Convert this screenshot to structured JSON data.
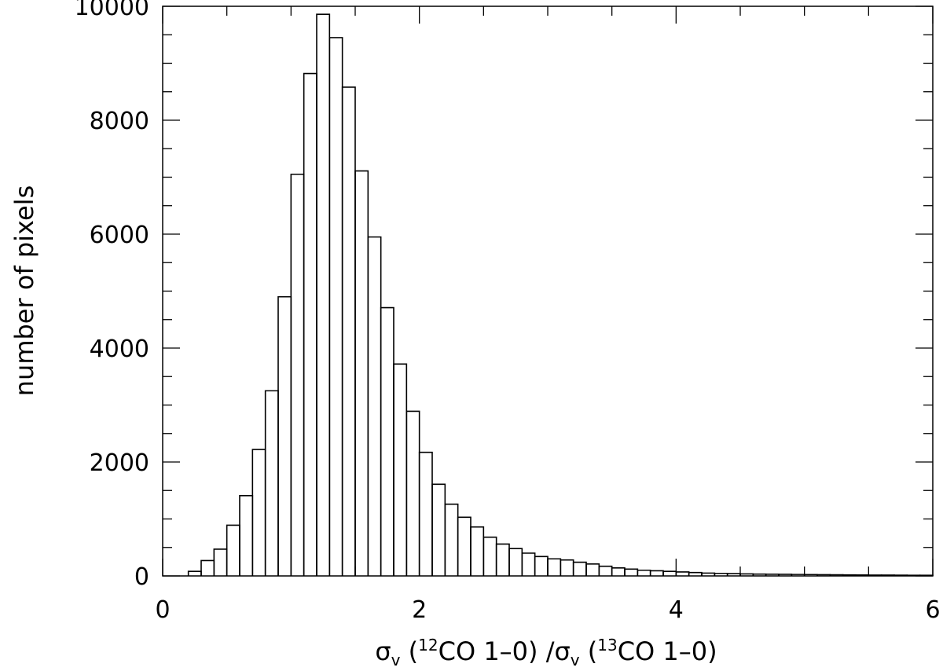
{
  "chart_data": {
    "type": "histogram",
    "title": "",
    "xlabel": {
      "sigma": "σ",
      "v": "v",
      "open_left": " (",
      "iso_left": "12",
      "line_left": "CO 1–0) /",
      "open_right": " (",
      "iso_right": "13",
      "line_right": "CO 1–0)"
    },
    "ylabel": "number of pixels",
    "xlim": [
      0,
      6
    ],
    "ylim": [
      0,
      10000
    ],
    "xticks": [
      0,
      2,
      4,
      6
    ],
    "xtick_labels": [
      "0",
      "2",
      "4",
      "6"
    ],
    "yticks": [
      0,
      2000,
      4000,
      6000,
      8000,
      10000
    ],
    "ytick_labels": [
      "0",
      "2000",
      "4000",
      "6000",
      "8000",
      "10000"
    ],
    "grid": false,
    "bin_width": 0.1,
    "bin_starts": [
      0.2,
      0.3,
      0.4,
      0.5,
      0.6,
      0.7,
      0.8,
      0.9,
      1.0,
      1.1,
      1.2,
      1.3,
      1.4,
      1.5,
      1.6,
      1.7,
      1.8,
      1.9,
      2.0,
      2.1,
      2.2,
      2.3,
      2.4,
      2.5,
      2.6,
      2.7,
      2.8,
      2.9,
      3.0,
      3.1,
      3.2,
      3.3,
      3.4,
      3.5,
      3.6,
      3.7,
      3.8,
      3.9,
      4.0,
      4.1,
      4.2,
      4.3,
      4.4,
      4.5,
      4.6,
      4.7,
      4.8,
      4.9,
      5.0,
      5.1,
      5.2,
      5.3,
      5.4,
      5.5,
      5.6,
      5.7,
      5.8,
      5.9
    ],
    "values": [
      80,
      270,
      470,
      890,
      1410,
      2220,
      3250,
      4900,
      7050,
      8820,
      9860,
      9450,
      8580,
      7110,
      5950,
      4710,
      3720,
      2890,
      2170,
      1610,
      1260,
      1030,
      860,
      680,
      560,
      480,
      400,
      340,
      300,
      280,
      240,
      210,
      170,
      140,
      120,
      100,
      90,
      80,
      70,
      60,
      50,
      45,
      40,
      35,
      32,
      30,
      28,
      26,
      24,
      22,
      20,
      18,
      16,
      15,
      14,
      13,
      12,
      11
    ]
  }
}
